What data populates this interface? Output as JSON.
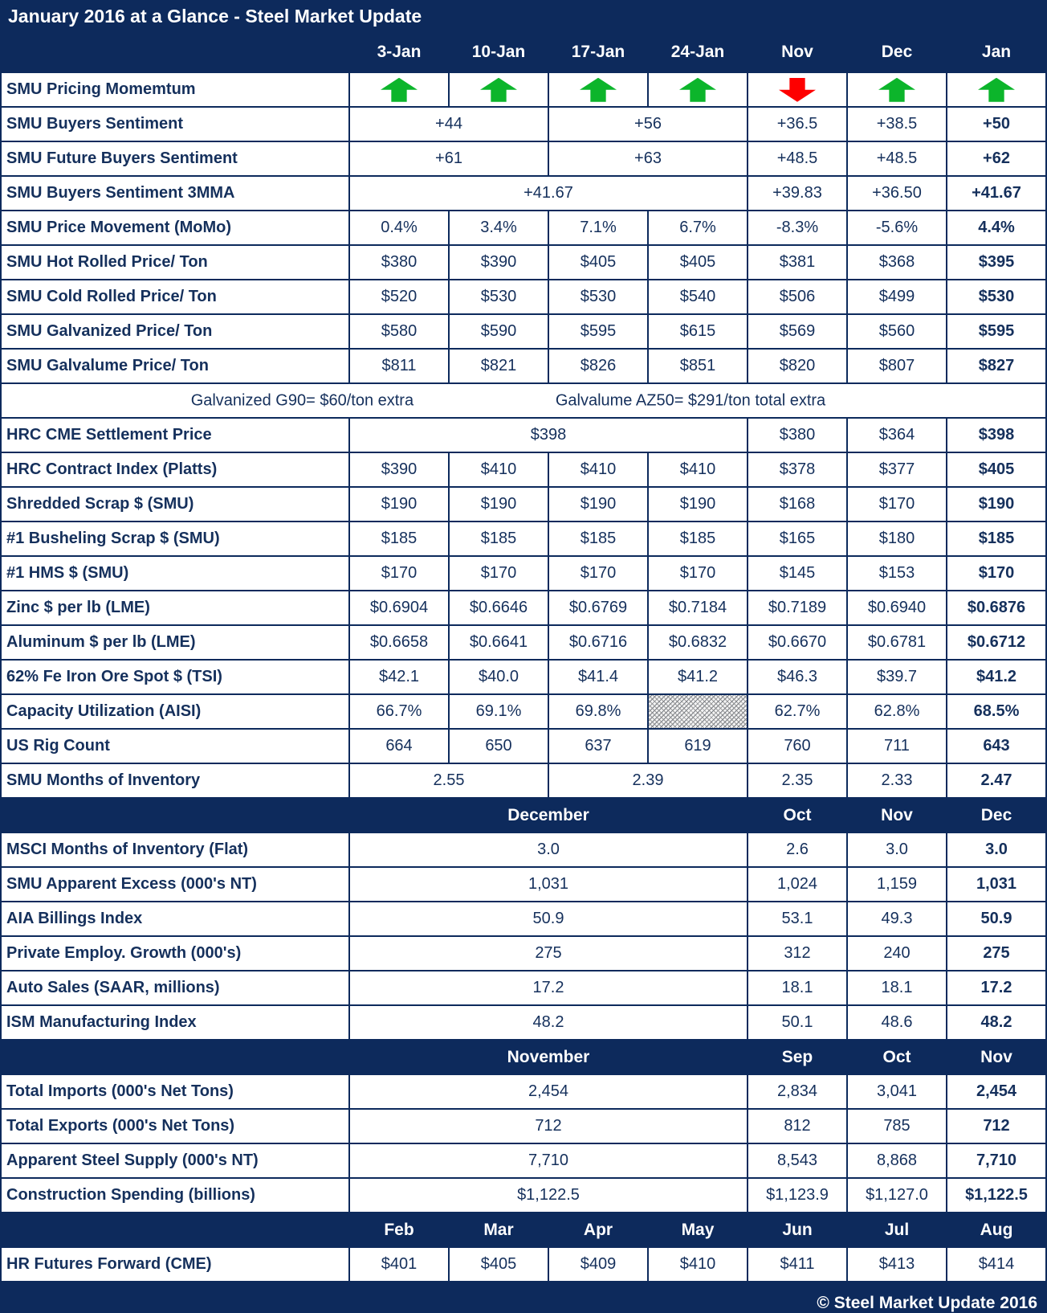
{
  "title": "January 2016 at a Glance - Steel Market Update",
  "footer": "© Steel Market Update 2016",
  "colors": {
    "navy": "#0d2a5c",
    "green_up": "#0cb52b",
    "red_down": "#fe0000",
    "cell_bg": "#ffffff"
  },
  "table": {
    "rows": [
      {
        "type": "cols",
        "label": "",
        "cells": [
          {
            "v": "3-Jan"
          },
          {
            "v": "10-Jan"
          },
          {
            "v": "17-Jan"
          },
          {
            "v": "24-Jan"
          },
          {
            "v": "Nov"
          },
          {
            "v": "Dec"
          },
          {
            "v": "Jan"
          }
        ]
      },
      {
        "type": "data",
        "label": "SMU Pricing Momemtum",
        "cells": [
          {
            "arrow": "up"
          },
          {
            "arrow": "up"
          },
          {
            "arrow": "up"
          },
          {
            "arrow": "up"
          },
          {
            "arrow": "down"
          },
          {
            "arrow": "up"
          },
          {
            "arrow": "up"
          }
        ]
      },
      {
        "type": "data",
        "label": "SMU Buyers Sentiment",
        "cells": [
          {
            "v": "+44",
            "span": 2
          },
          {
            "v": "+56",
            "span": 2
          },
          {
            "v": "+36.5"
          },
          {
            "v": "+38.5"
          },
          {
            "v": "+50",
            "bold": true
          }
        ]
      },
      {
        "type": "data",
        "label": "SMU Future Buyers Sentiment",
        "cells": [
          {
            "v": "+61",
            "span": 2
          },
          {
            "v": "+63",
            "span": 2
          },
          {
            "v": "+48.5"
          },
          {
            "v": "+48.5"
          },
          {
            "v": "+62",
            "bold": true
          }
        ]
      },
      {
        "type": "data",
        "label": "SMU Buyers Sentiment 3MMA",
        "cells": [
          {
            "v": "+41.67",
            "span": 4
          },
          {
            "v": "+39.83"
          },
          {
            "v": "+36.50"
          },
          {
            "v": "+41.67",
            "bold": true
          }
        ]
      },
      {
        "type": "data",
        "label": "SMU Price Movement (MoMo)",
        "cells": [
          {
            "v": "0.4%"
          },
          {
            "v": "3.4%"
          },
          {
            "v": "7.1%"
          },
          {
            "v": "6.7%"
          },
          {
            "v": "-8.3%"
          },
          {
            "v": "-5.6%"
          },
          {
            "v": "4.4%",
            "bold": true
          }
        ]
      },
      {
        "type": "data",
        "label": "SMU Hot Rolled Price/ Ton",
        "cells": [
          {
            "v": "$380"
          },
          {
            "v": "$390"
          },
          {
            "v": "$405"
          },
          {
            "v": "$405"
          },
          {
            "v": "$381"
          },
          {
            "v": "$368"
          },
          {
            "v": "$395",
            "bold": true
          }
        ]
      },
      {
        "type": "data",
        "label": "SMU Cold Rolled Price/ Ton",
        "cells": [
          {
            "v": "$520"
          },
          {
            "v": "$530"
          },
          {
            "v": "$530"
          },
          {
            "v": "$540"
          },
          {
            "v": "$506"
          },
          {
            "v": "$499"
          },
          {
            "v": "$530",
            "bold": true
          }
        ]
      },
      {
        "type": "data",
        "label": "SMU Galvanized Price/ Ton",
        "cells": [
          {
            "v": "$580"
          },
          {
            "v": "$590"
          },
          {
            "v": "$595"
          },
          {
            "v": "$615"
          },
          {
            "v": "$569"
          },
          {
            "v": "$560"
          },
          {
            "v": "$595",
            "bold": true
          }
        ]
      },
      {
        "type": "data",
        "label": "SMU Galvalume Price/ Ton",
        "cells": [
          {
            "v": "$811"
          },
          {
            "v": "$821"
          },
          {
            "v": "$826"
          },
          {
            "v": "$851"
          },
          {
            "v": "$820"
          },
          {
            "v": "$807"
          },
          {
            "v": "$827",
            "bold": true
          }
        ]
      },
      {
        "type": "note",
        "parts": [
          "Galvanized G90= $60/ton extra",
          "Galvalume AZ50= $291/ton total extra"
        ],
        "positions": [
          "28.8%",
          "66%"
        ]
      },
      {
        "type": "data",
        "label": "HRC CME Settlement Price",
        "cells": [
          {
            "v": "$398",
            "span": 4
          },
          {
            "v": "$380"
          },
          {
            "v": "$364"
          },
          {
            "v": "$398",
            "bold": true
          }
        ]
      },
      {
        "type": "data",
        "label": "HRC Contract Index (Platts)",
        "cells": [
          {
            "v": "$390"
          },
          {
            "v": "$410"
          },
          {
            "v": "$410"
          },
          {
            "v": "$410"
          },
          {
            "v": "$378"
          },
          {
            "v": "$377"
          },
          {
            "v": "$405",
            "bold": true
          }
        ]
      },
      {
        "type": "data",
        "label": "Shredded Scrap $ (SMU)",
        "cells": [
          {
            "v": "$190"
          },
          {
            "v": "$190"
          },
          {
            "v": "$190"
          },
          {
            "v": "$190"
          },
          {
            "v": "$168"
          },
          {
            "v": "$170"
          },
          {
            "v": "$190",
            "bold": true
          }
        ]
      },
      {
        "type": "data",
        "label": "#1 Busheling Scrap $ (SMU)",
        "cells": [
          {
            "v": "$185"
          },
          {
            "v": "$185"
          },
          {
            "v": "$185"
          },
          {
            "v": "$185"
          },
          {
            "v": "$165"
          },
          {
            "v": "$180"
          },
          {
            "v": "$185",
            "bold": true
          }
        ]
      },
      {
        "type": "data",
        "label": "#1 HMS $ (SMU)",
        "cells": [
          {
            "v": "$170"
          },
          {
            "v": "$170"
          },
          {
            "v": "$170"
          },
          {
            "v": "$170"
          },
          {
            "v": "$145"
          },
          {
            "v": "$153"
          },
          {
            "v": "$170",
            "bold": true
          }
        ]
      },
      {
        "type": "data",
        "label": "Zinc $ per lb (LME)",
        "cells": [
          {
            "v": "$0.6904"
          },
          {
            "v": "$0.6646"
          },
          {
            "v": "$0.6769"
          },
          {
            "v": "$0.7184"
          },
          {
            "v": "$0.7189"
          },
          {
            "v": "$0.6940"
          },
          {
            "v": "$0.6876",
            "bold": true
          }
        ]
      },
      {
        "type": "data",
        "label": "Aluminum $ per lb (LME)",
        "cells": [
          {
            "v": "$0.6658"
          },
          {
            "v": "$0.6641"
          },
          {
            "v": "$0.6716"
          },
          {
            "v": "$0.6832"
          },
          {
            "v": "$0.6670"
          },
          {
            "v": "$0.6781"
          },
          {
            "v": "$0.6712",
            "bold": true
          }
        ]
      },
      {
        "type": "data",
        "label": "62% Fe Iron Ore Spot $ (TSI)",
        "cells": [
          {
            "v": "$42.1"
          },
          {
            "v": "$40.0"
          },
          {
            "v": "$41.4"
          },
          {
            "v": "$41.2"
          },
          {
            "v": "$46.3"
          },
          {
            "v": "$39.7"
          },
          {
            "v": "$41.2",
            "bold": true
          }
        ]
      },
      {
        "type": "data",
        "label": "Capacity Utilization (AISI)",
        "cells": [
          {
            "v": "66.7%"
          },
          {
            "v": "69.1%"
          },
          {
            "v": "69.8%"
          },
          {
            "hatch": true
          },
          {
            "v": "62.7%"
          },
          {
            "v": "62.8%"
          },
          {
            "v": "68.5%",
            "bold": true
          }
        ]
      },
      {
        "type": "data",
        "label": "US Rig Count",
        "cells": [
          {
            "v": "664"
          },
          {
            "v": "650"
          },
          {
            "v": "637"
          },
          {
            "v": "619"
          },
          {
            "v": "760"
          },
          {
            "v": "711"
          },
          {
            "v": "643",
            "bold": true
          }
        ]
      },
      {
        "type": "data",
        "label": "SMU Months of Inventory",
        "cells": [
          {
            "v": "2.55",
            "span": 2
          },
          {
            "v": "2.39",
            "span": 2
          },
          {
            "v": "2.35"
          },
          {
            "v": "2.33"
          },
          {
            "v": "2.47",
            "bold": true
          }
        ]
      },
      {
        "type": "section",
        "label": "",
        "cells": [
          {
            "v": "December",
            "span": 4
          },
          {
            "v": "Oct"
          },
          {
            "v": "Nov"
          },
          {
            "v": "Dec"
          }
        ]
      },
      {
        "type": "data",
        "label": "MSCI Months of Inventory (Flat)",
        "cells": [
          {
            "v": "3.0",
            "span": 4
          },
          {
            "v": "2.6"
          },
          {
            "v": "3.0"
          },
          {
            "v": "3.0",
            "bold": true
          }
        ]
      },
      {
        "type": "data",
        "label": "SMU Apparent Excess (000's NT)",
        "cells": [
          {
            "v": "1,031",
            "span": 4
          },
          {
            "v": "1,024"
          },
          {
            "v": "1,159"
          },
          {
            "v": "1,031",
            "bold": true
          }
        ]
      },
      {
        "type": "data",
        "label": "AIA Billings Index",
        "cells": [
          {
            "v": "50.9",
            "span": 4
          },
          {
            "v": "53.1"
          },
          {
            "v": "49.3"
          },
          {
            "v": "50.9",
            "bold": true
          }
        ]
      },
      {
        "type": "data",
        "label": "Private Employ. Growth (000's)",
        "cells": [
          {
            "v": "275",
            "span": 4
          },
          {
            "v": "312"
          },
          {
            "v": "240"
          },
          {
            "v": "275",
            "bold": true
          }
        ]
      },
      {
        "type": "data",
        "label": "Auto Sales (SAAR, millions)",
        "cells": [
          {
            "v": "17.2",
            "span": 4
          },
          {
            "v": "18.1"
          },
          {
            "v": "18.1"
          },
          {
            "v": "17.2",
            "bold": true
          }
        ]
      },
      {
        "type": "data",
        "label": "ISM Manufacturing Index",
        "cells": [
          {
            "v": "48.2",
            "span": 4
          },
          {
            "v": "50.1"
          },
          {
            "v": "48.6"
          },
          {
            "v": "48.2",
            "bold": true
          }
        ]
      },
      {
        "type": "section",
        "label": "",
        "cells": [
          {
            "v": "November",
            "span": 4
          },
          {
            "v": "Sep"
          },
          {
            "v": "Oct"
          },
          {
            "v": "Nov"
          }
        ]
      },
      {
        "type": "data",
        "label": "Total Imports (000's Net Tons)",
        "cells": [
          {
            "v": "2,454",
            "span": 4
          },
          {
            "v": "2,834"
          },
          {
            "v": "3,041"
          },
          {
            "v": "2,454",
            "bold": true
          }
        ]
      },
      {
        "type": "data",
        "label": "Total Exports (000's Net Tons)",
        "cells": [
          {
            "v": "712",
            "span": 4
          },
          {
            "v": "812"
          },
          {
            "v": "785"
          },
          {
            "v": "712",
            "bold": true
          }
        ]
      },
      {
        "type": "data",
        "label": "Apparent Steel Supply (000's NT)",
        "cells": [
          {
            "v": "7,710",
            "span": 4
          },
          {
            "v": "8,543"
          },
          {
            "v": "8,868"
          },
          {
            "v": "7,710",
            "bold": true
          }
        ]
      },
      {
        "type": "data",
        "label": "Construction Spending (billions)",
        "cells": [
          {
            "v": "$1,122.5",
            "span": 4
          },
          {
            "v": "$1,123.9"
          },
          {
            "v": "$1,127.0"
          },
          {
            "v": "$1,122.5",
            "bold": true
          }
        ]
      },
      {
        "type": "section",
        "label": "",
        "cells": [
          {
            "v": "Feb"
          },
          {
            "v": "Mar"
          },
          {
            "v": "Apr"
          },
          {
            "v": "May"
          },
          {
            "v": "Jun"
          },
          {
            "v": "Jul"
          },
          {
            "v": "Aug"
          }
        ]
      },
      {
        "type": "data",
        "label": "HR Futures Forward (CME)",
        "cells": [
          {
            "v": "$401"
          },
          {
            "v": "$405"
          },
          {
            "v": "$409"
          },
          {
            "v": "$410"
          },
          {
            "v": "$411"
          },
          {
            "v": "$413"
          },
          {
            "v": "$414"
          }
        ]
      }
    ]
  }
}
